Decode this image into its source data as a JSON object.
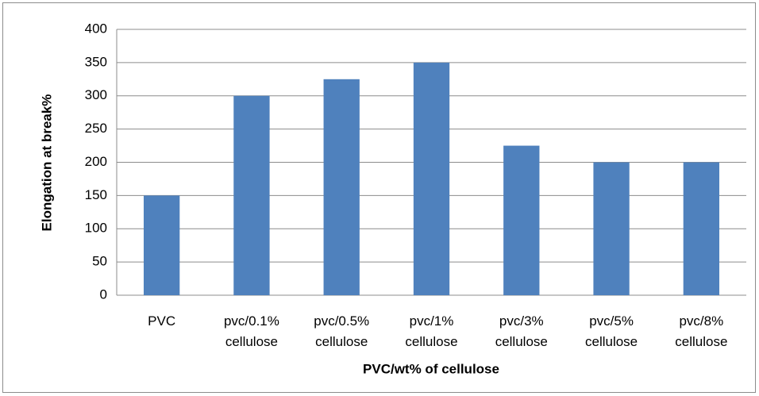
{
  "chart_data": {
    "type": "bar",
    "xlabel": "PVC/wt% of cellulose",
    "ylabel": "Elongation at break%",
    "categories": [
      "PVC",
      "pvc/0.1% cellulose",
      "pvc/0.5% cellulose",
      "pvc/1% cellulose",
      "pvc/3% cellulose",
      "pvc/5% cellulose",
      "pvc/8% cellulose"
    ],
    "values": [
      150,
      300,
      325,
      350,
      225,
      200,
      200
    ],
    "color": "#4f81bd",
    "ylim": [
      0,
      400
    ],
    "yticks": [
      0,
      50,
      100,
      150,
      200,
      250,
      300,
      350,
      400
    ],
    "grid": true
  }
}
